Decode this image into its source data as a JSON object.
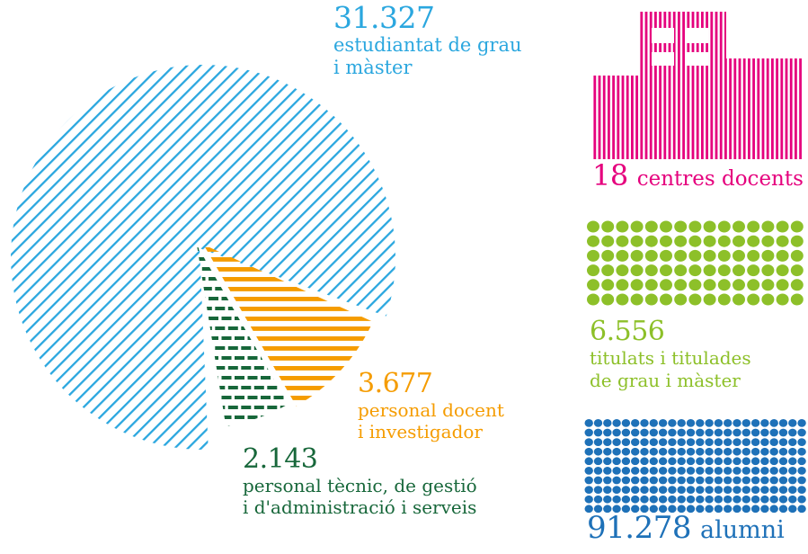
{
  "colors": {
    "cyan": "#2BA7DF",
    "orange": "#F59C00",
    "dark_green": "#17673A",
    "magenta": "#E5007D",
    "light_green": "#8DC029",
    "blue": "#1E71B8",
    "background": "#FFFFFF"
  },
  "chart_data": [
    {
      "type": "pie",
      "style": "exploded wedges with pattern fills, no outline",
      "legend_position": "labels placed around chart",
      "series": [
        {
          "name": "estudiantat de grau i màster",
          "value": 31327,
          "display": "31.327",
          "color": "#2BA7DF",
          "pattern": "diagonal-hatch"
        },
        {
          "name": "personal docent i investigador",
          "value": 3677,
          "display": "3.677",
          "color": "#F59C00",
          "pattern": "horizontal-stripes"
        },
        {
          "name": "personal tècnic, de gestió i d'administració i serveis",
          "value": 2143,
          "display": "2.143",
          "color": "#17673A",
          "pattern": "horizontal-dashes"
        }
      ]
    },
    {
      "type": "pictogram",
      "icon": "building-vertical-bars",
      "value": 18,
      "display": "18",
      "label": "centres docents",
      "color": "#E5007D"
    },
    {
      "type": "pictogram",
      "icon": "dot-matrix",
      "value": 6556,
      "display": "6.556",
      "label": "titulats i titulades de grau i màster",
      "color": "#8DC029",
      "grid": {
        "cols": 15,
        "rows": 6,
        "dot_radius": 7,
        "pitch_x": 16.2,
        "pitch_y": 16.2
      }
    },
    {
      "type": "pictogram",
      "icon": "dot-matrix",
      "value": 91278,
      "display": "91.278",
      "label": "alumni",
      "color": "#1E71B8",
      "grid": {
        "cols": 24,
        "rows": 10,
        "dot_radius": 4.7,
        "pitch_x": 10.3,
        "pitch_y": 10.6
      }
    }
  ],
  "labels": {
    "students": {
      "number": "31.327",
      "line1": "estudiantat de grau",
      "line2": "i màster"
    },
    "pdi": {
      "number": "3.677",
      "line1": "personal docent",
      "line2": "i investigador"
    },
    "ptgas": {
      "number": "2.143",
      "line1": "personal tècnic, de gestió",
      "line2": "i d'administració i serveis"
    },
    "centres": {
      "number": "18",
      "text": "centres docents"
    },
    "titulats": {
      "number": "6.556",
      "line1": "titulats i titulades",
      "line2": "de grau i màster"
    },
    "alumni": {
      "number": "91.278",
      "text": "alumni"
    }
  }
}
